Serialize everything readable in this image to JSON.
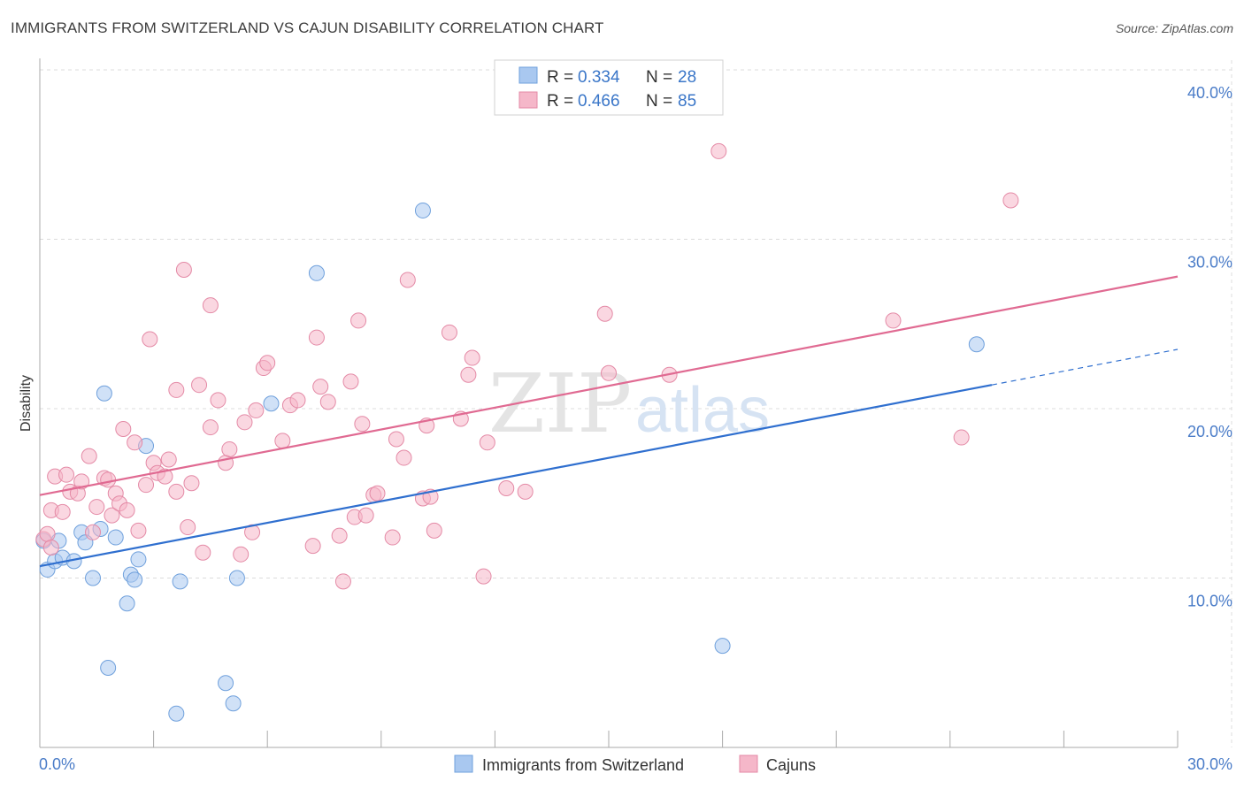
{
  "header": {
    "title": "IMMIGRANTS FROM SWITZERLAND VS CAJUN DISABILITY CORRELATION CHART",
    "source": "Source: ZipAtlas.com"
  },
  "watermark": {
    "zip": "ZIP",
    "atlas": "atlas"
  },
  "colors": {
    "blue_fill": "#a9c8f0",
    "blue_stroke": "#6fa0dc",
    "blue_line": "#2f6fcf",
    "pink_fill": "#f5b7c9",
    "pink_stroke": "#e48aa6",
    "pink_line": "#e06a92",
    "grid": "#dcdcdc",
    "tick_text": "#4a7cc8"
  },
  "legend": {
    "rows": [
      {
        "r_label": "R =",
        "r_value": "0.334",
        "n_label": "N =",
        "n_value": "28",
        "series": "blue"
      },
      {
        "r_label": "R =",
        "r_value": "0.466",
        "n_label": "N =",
        "n_value": "85",
        "series": "pink"
      }
    ]
  },
  "bottom_legend": [
    {
      "label": "Immigrants from Switzerland",
      "series": "blue"
    },
    {
      "label": "Cajuns",
      "series": "pink"
    }
  ],
  "chart_data": {
    "type": "scatter",
    "ylabel": "Disability",
    "xlabel": "",
    "xlim": [
      0,
      30
    ],
    "ylim": [
      0,
      40
    ],
    "x_ticks": [
      {
        "value": 0,
        "label": "0.0%"
      },
      {
        "value": 30,
        "label": "30.0%"
      }
    ],
    "y_ticks": [
      {
        "value": 10,
        "label": "10.0%"
      },
      {
        "value": 20,
        "label": "20.0%"
      },
      {
        "value": 30,
        "label": "30.0%"
      },
      {
        "value": 40,
        "label": "40.0%"
      }
    ],
    "grid": true,
    "series": [
      {
        "name": "Immigrants from Switzerland",
        "color": "blue",
        "points": [
          [
            0.1,
            12.2
          ],
          [
            0.2,
            10.5
          ],
          [
            0.4,
            11.0
          ],
          [
            0.5,
            12.2
          ],
          [
            0.6,
            11.2
          ],
          [
            0.9,
            11.0
          ],
          [
            1.1,
            12.7
          ],
          [
            1.2,
            12.1
          ],
          [
            1.4,
            10.0
          ],
          [
            1.6,
            12.9
          ],
          [
            1.7,
            20.9
          ],
          [
            1.8,
            4.7
          ],
          [
            2.0,
            12.4
          ],
          [
            2.3,
            8.5
          ],
          [
            2.4,
            10.2
          ],
          [
            2.5,
            9.9
          ],
          [
            2.6,
            11.1
          ],
          [
            2.8,
            17.8
          ],
          [
            3.6,
            2.0
          ],
          [
            3.7,
            9.8
          ],
          [
            4.9,
            3.8
          ],
          [
            5.1,
            2.6
          ],
          [
            5.2,
            10.0
          ],
          [
            6.1,
            20.3
          ],
          [
            7.3,
            28.0
          ],
          [
            10.1,
            31.7
          ],
          [
            18.0,
            6.0
          ],
          [
            24.7,
            23.8
          ]
        ],
        "trend": {
          "x": [
            0,
            25.1
          ],
          "y": [
            10.7,
            21.4
          ],
          "dashed_to": [
            30,
            23.5
          ]
        }
      },
      {
        "name": "Cajuns",
        "color": "pink",
        "points": [
          [
            0.1,
            12.3
          ],
          [
            0.2,
            12.6
          ],
          [
            0.3,
            11.8
          ],
          [
            0.3,
            14.0
          ],
          [
            0.4,
            16.0
          ],
          [
            0.6,
            13.9
          ],
          [
            0.7,
            16.1
          ],
          [
            0.8,
            15.1
          ],
          [
            1.0,
            15.0
          ],
          [
            1.1,
            15.7
          ],
          [
            1.3,
            17.2
          ],
          [
            1.4,
            12.7
          ],
          [
            1.5,
            14.2
          ],
          [
            1.7,
            15.9
          ],
          [
            1.8,
            15.8
          ],
          [
            1.9,
            13.7
          ],
          [
            2.0,
            15.0
          ],
          [
            2.1,
            14.4
          ],
          [
            2.2,
            18.8
          ],
          [
            2.3,
            14.0
          ],
          [
            2.5,
            18.0
          ],
          [
            2.6,
            12.8
          ],
          [
            2.8,
            15.5
          ],
          [
            2.9,
            24.1
          ],
          [
            3.0,
            16.8
          ],
          [
            3.1,
            16.2
          ],
          [
            3.3,
            16.0
          ],
          [
            3.4,
            17.0
          ],
          [
            3.6,
            21.1
          ],
          [
            3.6,
            15.1
          ],
          [
            3.8,
            28.2
          ],
          [
            3.9,
            13.0
          ],
          [
            4.0,
            15.6
          ],
          [
            4.2,
            21.4
          ],
          [
            4.3,
            11.5
          ],
          [
            4.5,
            26.1
          ],
          [
            4.5,
            18.9
          ],
          [
            4.7,
            20.5
          ],
          [
            4.9,
            16.8
          ],
          [
            5.0,
            17.6
          ],
          [
            5.3,
            11.4
          ],
          [
            5.4,
            19.2
          ],
          [
            5.6,
            12.7
          ],
          [
            5.7,
            19.9
          ],
          [
            5.9,
            22.4
          ],
          [
            6.0,
            22.7
          ],
          [
            6.4,
            18.1
          ],
          [
            6.6,
            20.2
          ],
          [
            6.8,
            20.5
          ],
          [
            7.2,
            11.9
          ],
          [
            7.3,
            24.2
          ],
          [
            7.4,
            21.3
          ],
          [
            7.6,
            20.4
          ],
          [
            7.9,
            12.5
          ],
          [
            8.0,
            9.8
          ],
          [
            8.2,
            21.6
          ],
          [
            8.3,
            13.6
          ],
          [
            8.4,
            25.2
          ],
          [
            8.5,
            19.1
          ],
          [
            8.6,
            13.7
          ],
          [
            8.8,
            14.9
          ],
          [
            8.9,
            15.0
          ],
          [
            9.3,
            12.4
          ],
          [
            9.4,
            18.2
          ],
          [
            9.6,
            17.1
          ],
          [
            9.7,
            27.6
          ],
          [
            10.1,
            14.7
          ],
          [
            10.2,
            19.0
          ],
          [
            10.3,
            14.8
          ],
          [
            10.4,
            12.8
          ],
          [
            10.8,
            24.5
          ],
          [
            11.1,
            19.4
          ],
          [
            11.3,
            22.0
          ],
          [
            11.4,
            23.0
          ],
          [
            11.7,
            10.1
          ],
          [
            11.8,
            18.0
          ],
          [
            12.3,
            15.3
          ],
          [
            12.8,
            15.1
          ],
          [
            14.9,
            25.6
          ],
          [
            15.0,
            22.1
          ],
          [
            16.6,
            22.0
          ],
          [
            17.9,
            35.2
          ],
          [
            22.5,
            25.2
          ],
          [
            24.3,
            18.3
          ],
          [
            25.6,
            32.3
          ]
        ],
        "trend": {
          "x": [
            0,
            30
          ],
          "y": [
            14.9,
            27.8
          ]
        }
      }
    ]
  }
}
